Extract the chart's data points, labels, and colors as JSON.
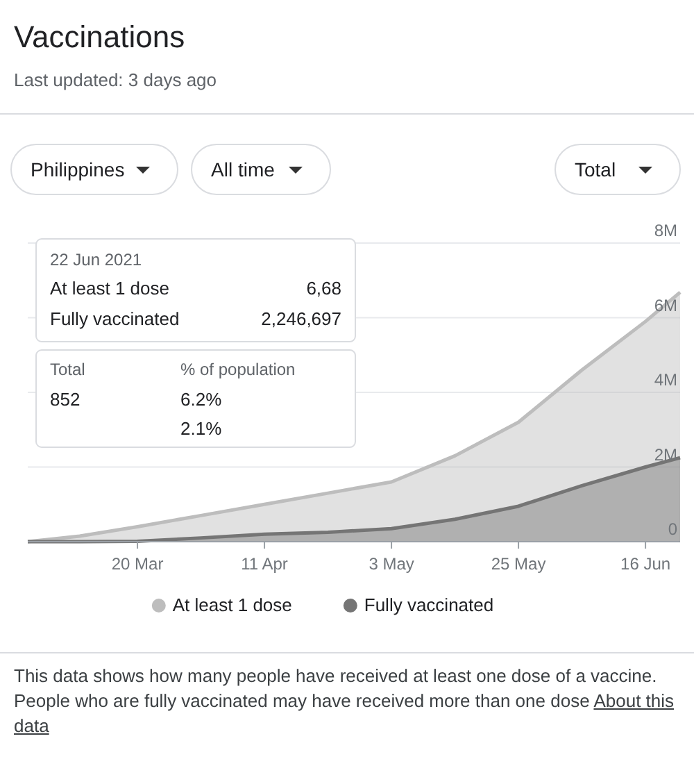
{
  "chart_data": {
    "type": "area",
    "title": "Vaccinations",
    "subtitle": "Last updated: 3 days ago",
    "x": [
      "2021-03-01",
      "2021-03-10",
      "2021-03-20",
      "2021-03-31",
      "2021-04-11",
      "2021-04-22",
      "2021-05-03",
      "2021-05-14",
      "2021-05-25",
      "2021-06-05",
      "2021-06-16",
      "2021-06-22"
    ],
    "xlim": [
      "2021-03-01",
      "2021-06-22"
    ],
    "xticks": [
      {
        "value": "2021-03-20",
        "label": "20 Mar"
      },
      {
        "value": "2021-04-11",
        "label": "11 Apr"
      },
      {
        "value": "2021-05-03",
        "label": "3 May"
      },
      {
        "value": "2021-05-25",
        "label": "25 May"
      },
      {
        "value": "2021-06-16",
        "label": "16 Jun"
      }
    ],
    "ylim": [
      0,
      8000000
    ],
    "yticks": [
      {
        "value": 0,
        "label": "0"
      },
      {
        "value": 2000000,
        "label": "2M"
      },
      {
        "value": 4000000,
        "label": "4M"
      },
      {
        "value": 6000000,
        "label": "6M"
      },
      {
        "value": 8000000,
        "label": "8M"
      }
    ],
    "grid": "y",
    "legend": "bottom",
    "series": [
      {
        "name": "At least 1 dose",
        "color": "#bdbdbd",
        "values": [
          0,
          150000,
          400000,
          700000,
          1000000,
          1300000,
          1600000,
          2300000,
          3200000,
          4600000,
          5900000,
          6680000
        ]
      },
      {
        "name": "Fully vaccinated",
        "color": "#757575",
        "values": [
          0,
          0,
          10000,
          100000,
          200000,
          250000,
          350000,
          600000,
          950000,
          1500000,
          2000000,
          2250000
        ]
      }
    ],
    "annotations": [
      "Philippines",
      "All time",
      "Total",
      "22 Jun 2021",
      "At least 1 dose",
      "6,68",
      "Fully vaccinated",
      "2,246,697",
      "Total",
      "% of population",
      "852",
      "6.2%",
      "2.1%",
      "This data shows how many people have received at least one dose of a vaccine. People who are fully vaccinated may have received more than one dose",
      "About this data"
    ]
  }
}
